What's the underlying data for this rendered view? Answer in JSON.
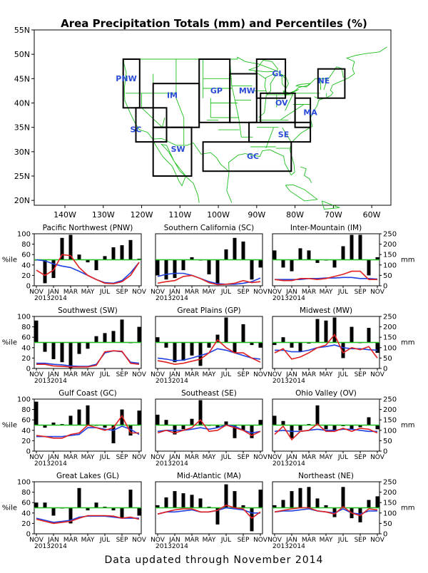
{
  "title": "Area Precipitation Totals (mm) and Percentiles (%)",
  "footer": "Data updated through November 2014",
  "colors": {
    "map_lines": "#1fbf1f",
    "region_box": "#000000",
    "region_text": "#2a4bd6",
    "percentile_line_red": "#e02020",
    "percentile_line_blue": "#2040e0",
    "median_line": "#1fbf1f",
    "bars": "#000000"
  },
  "map": {
    "lat_labels": [
      "55N",
      "50N",
      "45N",
      "40N",
      "35N",
      "30N",
      "25N",
      "20N"
    ],
    "lon_labels": [
      "140W",
      "130W",
      "120W",
      "110W",
      "100W",
      "90W",
      "80W",
      "70W",
      "60W"
    ],
    "regions": [
      {
        "code": "PNW",
        "lat": 44.5,
        "lon": -124.0
      },
      {
        "code": "SC",
        "lat": 34.0,
        "lon": -121.5
      },
      {
        "code": "IM",
        "lat": 41.0,
        "lon": -112.0
      },
      {
        "code": "SW",
        "lat": 30.0,
        "lon": -110.5
      },
      {
        "code": "GP",
        "lat": 42.0,
        "lon": -100.5
      },
      {
        "code": "MW",
        "lat": 42.0,
        "lon": -92.5
      },
      {
        "code": "GL",
        "lat": 45.5,
        "lon": -84.5
      },
      {
        "code": "NE",
        "lat": 44.0,
        "lon": -72.5
      },
      {
        "code": "OV",
        "lat": 39.5,
        "lon": -83.5
      },
      {
        "code": "MA",
        "lat": 37.5,
        "lon": -76.0
      },
      {
        "code": "SE",
        "lat": 33.0,
        "lon": -83.0
      },
      {
        "code": "GC",
        "lat": 28.5,
        "lon": -91.0
      }
    ]
  },
  "axis_common": {
    "left_label": "%ile",
    "right_label": "mm",
    "left_ticks": [
      "0",
      "20",
      "40",
      "60",
      "80",
      "100"
    ],
    "right_ticks": [
      "0",
      "50",
      "100",
      "150",
      "200",
      "250"
    ],
    "months": [
      "NOV",
      "JAN",
      "MAR",
      "MAY",
      "JUL",
      "SEP",
      "NOV"
    ],
    "years": "20132014"
  },
  "chart_data": [
    {
      "type": "bar",
      "title": "Pacific Northwest (PNW)",
      "categories": [
        "N",
        "D",
        "J",
        "F",
        "M",
        "A",
        "M",
        "J",
        "J",
        "A",
        "S",
        "O",
        "N"
      ],
      "percentiles": [
        50,
        5,
        15,
        92,
        98,
        60,
        45,
        30,
        57,
        74,
        78,
        88,
        52
      ],
      "line_red": [
        30,
        20,
        30,
        60,
        58,
        35,
        20,
        12,
        5,
        4,
        8,
        20,
        45
      ],
      "line_blue": [
        50,
        48,
        42,
        38,
        35,
        28,
        20,
        12,
        6,
        5,
        10,
        25,
        45
      ],
      "ylim": [
        0,
        100
      ]
    },
    {
      "type": "bar",
      "title": "Southern California (SC)",
      "categories": [
        "N",
        "D",
        "J",
        "F",
        "M",
        "A",
        "M",
        "J",
        "J",
        "A",
        "S",
        "O",
        "N"
      ],
      "percentiles": [
        20,
        12,
        15,
        30,
        55,
        50,
        22,
        4,
        70,
        92,
        85,
        12,
        35
      ],
      "line_red": [
        5,
        8,
        10,
        18,
        20,
        14,
        6,
        2,
        3,
        5,
        10,
        6,
        8
      ],
      "line_blue": [
        18,
        22,
        24,
        24,
        20,
        14,
        8,
        4,
        3,
        3,
        5,
        8,
        15
      ],
      "ylim": [
        0,
        100
      ]
    },
    {
      "type": "bar",
      "title": "Inter-Mountain (IM)",
      "categories": [
        "N",
        "D",
        "J",
        "F",
        "M",
        "A",
        "M",
        "J",
        "J",
        "A",
        "S",
        "O",
        "N"
      ],
      "percentiles": [
        68,
        35,
        28,
        72,
        68,
        44,
        50,
        35,
        76,
        98,
        98,
        20,
        55
      ],
      "line_red": [
        12,
        10,
        10,
        14,
        14,
        12,
        14,
        18,
        22,
        28,
        28,
        12,
        12
      ],
      "line_blue": [
        12,
        12,
        12,
        12,
        14,
        14,
        15,
        15,
        16,
        16,
        14,
        14,
        13
      ],
      "ylim": [
        0,
        100
      ]
    },
    {
      "type": "bar",
      "title": "Southwest (SW)",
      "categories": [
        "N",
        "D",
        "J",
        "F",
        "M",
        "A",
        "M",
        "J",
        "J",
        "A",
        "S",
        "O",
        "N"
      ],
      "percentiles": [
        92,
        32,
        18,
        12,
        0,
        28,
        38,
        62,
        68,
        72,
        94,
        50,
        80
      ],
      "line_red": [
        8,
        8,
        5,
        4,
        3,
        3,
        3,
        6,
        32,
        34,
        33,
        10,
        8
      ],
      "line_blue": [
        10,
        10,
        8,
        7,
        5,
        4,
        4,
        8,
        30,
        34,
        32,
        12,
        10
      ],
      "ylim": [
        0,
        100
      ]
    },
    {
      "type": "bar",
      "title": "Great Plains (GP)",
      "categories": [
        "N",
        "D",
        "J",
        "F",
        "M",
        "A",
        "M",
        "J",
        "J",
        "A",
        "S",
        "O",
        "N"
      ],
      "percentiles": [
        60,
        40,
        12,
        15,
        25,
        5,
        40,
        65,
        98,
        30,
        85,
        45,
        40
      ],
      "line_red": [
        15,
        12,
        8,
        10,
        14,
        18,
        30,
        55,
        40,
        30,
        30,
        20,
        12
      ],
      "line_blue": [
        20,
        18,
        15,
        16,
        20,
        25,
        30,
        38,
        35,
        30,
        25,
        20,
        18
      ],
      "ylim": [
        0,
        100
      ]
    },
    {
      "type": "bar",
      "title": "Midwest (MW)",
      "categories": [
        "N",
        "D",
        "J",
        "F",
        "M",
        "A",
        "M",
        "J",
        "J",
        "A",
        "S",
        "O",
        "N"
      ],
      "percentiles": [
        45,
        60,
        40,
        32,
        48,
        95,
        92,
        98,
        20,
        80,
        50,
        78,
        30
      ],
      "line_red": [
        30,
        38,
        18,
        22,
        30,
        40,
        45,
        65,
        30,
        40,
        36,
        42,
        20
      ],
      "line_blue": [
        35,
        35,
        32,
        32,
        35,
        40,
        42,
        45,
        40,
        38,
        38,
        36,
        35
      ],
      "ylim": [
        0,
        100
      ]
    },
    {
      "type": "bar",
      "title": "Gulf Coast (GC)",
      "categories": [
        "N",
        "D",
        "J",
        "F",
        "M",
        "A",
        "M",
        "J",
        "J",
        "A",
        "S",
        "O",
        "N"
      ],
      "percentiles": [
        95,
        45,
        55,
        52,
        68,
        80,
        88,
        50,
        45,
        15,
        80,
        30,
        78
      ],
      "line_red": [
        30,
        28,
        25,
        25,
        32,
        35,
        50,
        45,
        40,
        45,
        68,
        35,
        35
      ],
      "line_blue": [
        28,
        28,
        28,
        28,
        30,
        32,
        45,
        45,
        42,
        40,
        48,
        42,
        32
      ],
      "ylim": [
        0,
        100
      ]
    },
    {
      "type": "bar",
      "title": "Southeast (SE)",
      "categories": [
        "N",
        "D",
        "J",
        "F",
        "M",
        "A",
        "M",
        "J",
        "J",
        "A",
        "S",
        "O",
        "N"
      ],
      "percentiles": [
        70,
        60,
        32,
        42,
        62,
        98,
        50,
        45,
        57,
        25,
        40,
        25,
        60
      ],
      "line_red": [
        35,
        40,
        35,
        40,
        45,
        60,
        38,
        40,
        50,
        45,
        40,
        30,
        38
      ],
      "line_blue": [
        38,
        40,
        40,
        40,
        42,
        45,
        42,
        45,
        50,
        48,
        40,
        35,
        38
      ],
      "ylim": [
        0,
        100
      ]
    },
    {
      "type": "bar",
      "title": "Ohio Valley (OV)",
      "categories": [
        "N",
        "D",
        "J",
        "F",
        "M",
        "A",
        "M",
        "J",
        "J",
        "A",
        "S",
        "O",
        "N"
      ],
      "percentiles": [
        68,
        58,
        25,
        40,
        52,
        88,
        42,
        38,
        48,
        42,
        46,
        65,
        42
      ],
      "line_red": [
        32,
        48,
        22,
        38,
        40,
        52,
        38,
        38,
        44,
        38,
        44,
        42,
        35
      ],
      "line_blue": [
        38,
        40,
        38,
        38,
        40,
        42,
        40,
        40,
        42,
        42,
        40,
        38,
        38
      ],
      "ylim": [
        0,
        100
      ]
    },
    {
      "type": "bar",
      "title": "Great Lakes (GL)",
      "categories": [
        "N",
        "D",
        "J",
        "F",
        "M",
        "A",
        "M",
        "J",
        "J",
        "A",
        "S",
        "O",
        "N"
      ],
      "percentiles": [
        60,
        60,
        35,
        50,
        20,
        88,
        45,
        60,
        52,
        45,
        30,
        85,
        35
      ],
      "line_red": [
        28,
        24,
        20,
        22,
        24,
        30,
        35,
        35,
        35,
        34,
        30,
        32,
        28
      ],
      "line_blue": [
        30,
        26,
        22,
        24,
        26,
        32,
        34,
        34,
        34,
        32,
        30,
        30,
        30
      ],
      "ylim": [
        0,
        100
      ]
    },
    {
      "type": "bar",
      "title": "Mid-Atlantic (MA)",
      "categories": [
        "N",
        "D",
        "J",
        "F",
        "M",
        "A",
        "M",
        "J",
        "J",
        "A",
        "S",
        "O",
        "N"
      ],
      "percentiles": [
        55,
        70,
        82,
        78,
        75,
        68,
        52,
        18,
        95,
        82,
        55,
        5,
        85
      ],
      "line_red": [
        38,
        42,
        46,
        48,
        48,
        42,
        42,
        45,
        55,
        50,
        48,
        30,
        42
      ],
      "line_blue": [
        38,
        42,
        42,
        44,
        46,
        42,
        42,
        45,
        50,
        48,
        46,
        40,
        40
      ],
      "ylim": [
        0,
        100
      ]
    },
    {
      "type": "bar",
      "title": "Northeast (NE)",
      "categories": [
        "N",
        "D",
        "J",
        "F",
        "M",
        "A",
        "M",
        "J",
        "J",
        "A",
        "S",
        "O",
        "N"
      ],
      "percentiles": [
        55,
        65,
        82,
        88,
        90,
        68,
        55,
        32,
        90,
        30,
        22,
        65,
        72
      ],
      "line_red": [
        42,
        45,
        48,
        50,
        50,
        44,
        42,
        38,
        52,
        40,
        35,
        48,
        46
      ],
      "line_blue": [
        42,
        44,
        44,
        46,
        48,
        44,
        42,
        40,
        48,
        40,
        38,
        44,
        44
      ],
      "ylim": [
        0,
        100
      ]
    }
  ]
}
